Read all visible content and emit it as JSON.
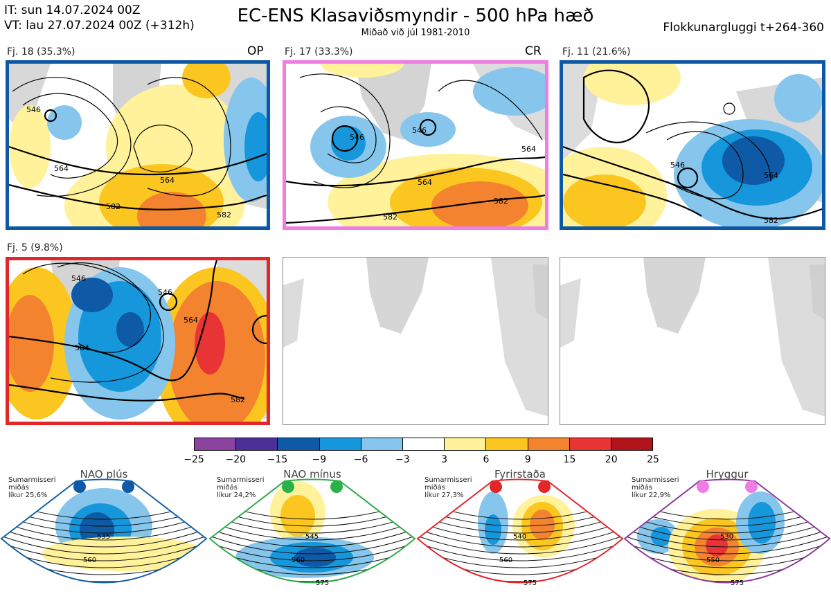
{
  "header": {
    "it_line": "IT: sun 14.07.2024 00Z",
    "vt_line": "VT: lau 27.07.2024 00Z  (+312h)",
    "title": "EC-ENS Klasaviðsmyndir - 500 hPa hæð",
    "subtitle": "Miðað við júl 1981-2010",
    "window": "Flokkunargluggi t+264-360"
  },
  "clusters": [
    {
      "label": "Fj. 18 (35.3%)",
      "tag": "OP",
      "frame_color": "#0d58a6",
      "contours": [
        "546",
        "564",
        "564",
        "582",
        "582"
      ]
    },
    {
      "label": "Fj. 17 (33.3%)",
      "tag": "CR",
      "frame_color": "#ee7ee6",
      "contours": [
        "546",
        "546",
        "564",
        "564",
        "582",
        "582"
      ]
    },
    {
      "label": "Fj. 11 (21.6%)",
      "tag": "",
      "frame_color": "#0d58a6",
      "contours": [
        "546",
        "564",
        "582"
      ]
    },
    {
      "label": "Fj. 5 (9.8%)",
      "tag": "",
      "frame_color": "#e3262a",
      "contours": [
        "546",
        "546",
        "564",
        "564",
        "582"
      ]
    }
  ],
  "colorbar": {
    "ticks": [
      "−25",
      "−20",
      "−15",
      "−9",
      "−6",
      "−3",
      "3",
      "6",
      "9",
      "15",
      "20",
      "25"
    ],
    "colors": [
      "#8a44a0",
      "#4c2f96",
      "#0e5aa6",
      "#1697db",
      "#86c6ec",
      "#ffffff",
      "#fff29a",
      "#fbc61f",
      "#f3832f",
      "#e93435",
      "#b01319"
    ]
  },
  "regimes": [
    {
      "name": "NAO plús",
      "season": "Sumarmisseri",
      "mean": "miðás",
      "prob": "líkur 25,6%",
      "dot_color": "#0e5aa6",
      "frame_color": "#1560a8",
      "contours": [
        "535",
        "560"
      ]
    },
    {
      "name": "NAO mínus",
      "season": "Sumarmisseri",
      "mean": "miðás",
      "prob": "líkur 24,2%",
      "dot_color": "#29b24a",
      "frame_color": "#2eaa4a",
      "contours": [
        "545",
        "560",
        "575"
      ]
    },
    {
      "name": "Fyrirstaða",
      "season": "Sumarmisseri",
      "mean": "miðás",
      "prob": "líkur 27,3%",
      "dot_color": "#e3262a",
      "frame_color": "#e3262a",
      "contours": [
        "540",
        "560",
        "575"
      ]
    },
    {
      "name": "Hryggur",
      "season": "Sumarmisseri",
      "mean": "miðás",
      "prob": "líkur 22,9%",
      "dot_color": "#ee7ee6",
      "frame_color": "#8e3a9c",
      "contours": [
        "530",
        "550",
        "575"
      ]
    }
  ]
}
